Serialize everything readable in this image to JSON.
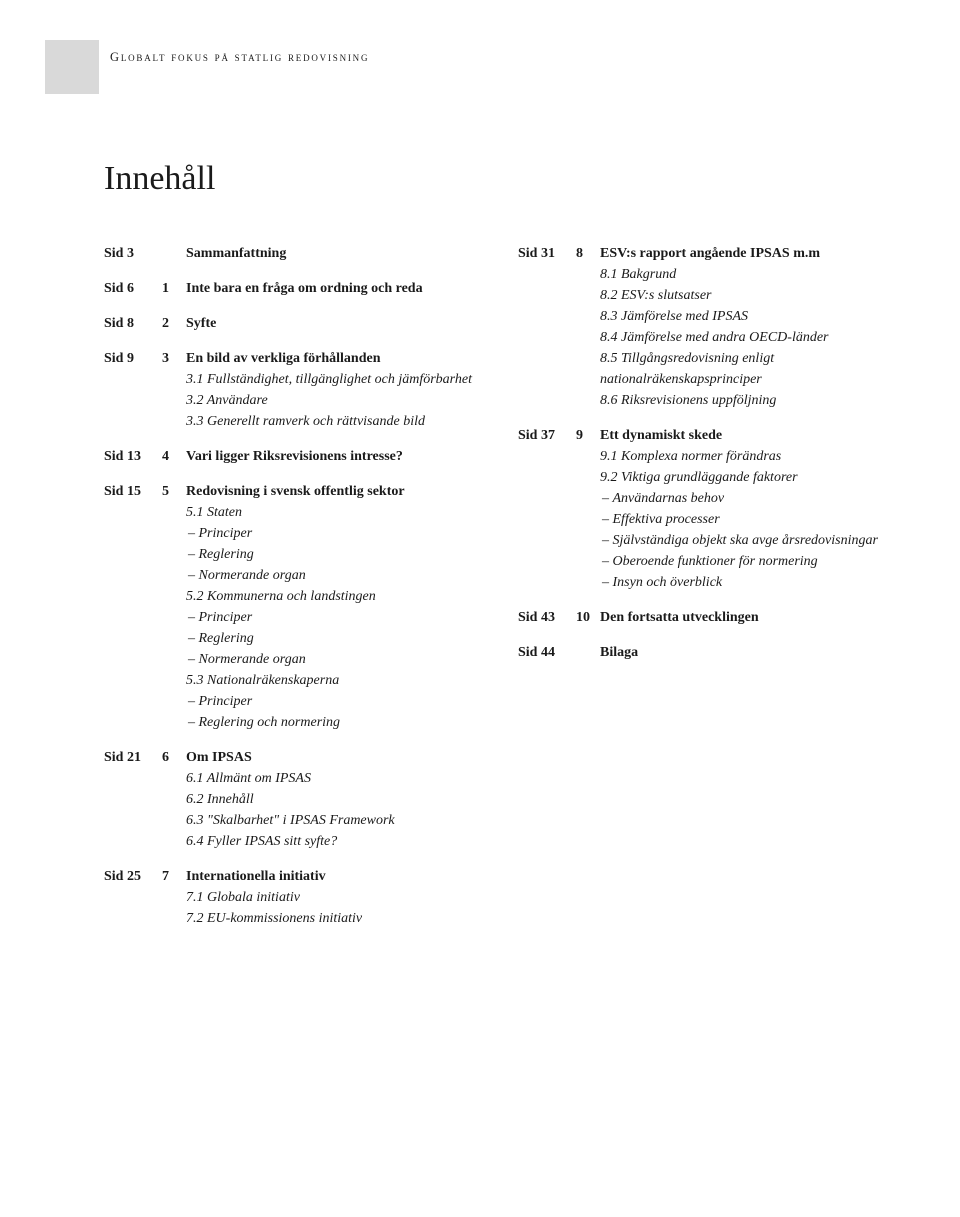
{
  "header": "GLOBALT FOKUS PÅ STATLIG REDOVISNING",
  "title": "Innehåll",
  "leftEntries": [
    {
      "sid": "Sid 3",
      "num": "",
      "head": "Sammanfattning",
      "subs": []
    },
    {
      "sid": "Sid 6",
      "num": "1",
      "head": "Inte bara en fråga om ordning och reda",
      "subs": []
    },
    {
      "sid": "Sid 8",
      "num": "2",
      "head": "Syfte",
      "subs": []
    },
    {
      "sid": "Sid 9",
      "num": "3",
      "head": "En bild av verkliga förhållanden",
      "subs": [
        {
          "t": "sub",
          "text": "3.1 Fullständighet, tillgänglighet och jämförbarhet"
        },
        {
          "t": "sub",
          "text": "3.2 Användare"
        },
        {
          "t": "sub",
          "text": "3.3 Generellt ramverk och rättvisande bild"
        }
      ]
    },
    {
      "sid": "Sid 13",
      "num": "4",
      "head": "Vari ligger Riksrevisionens intresse?",
      "subs": []
    },
    {
      "sid": "Sid 15",
      "num": "5",
      "head": "Redovisning i svensk offentlig sektor",
      "subs": [
        {
          "t": "sub",
          "text": "5.1 Staten"
        },
        {
          "t": "dash",
          "text": "Principer"
        },
        {
          "t": "dash",
          "text": "Reglering"
        },
        {
          "t": "dash",
          "text": "Normerande organ"
        },
        {
          "t": "sub",
          "text": "5.2 Kommunerna och landstingen"
        },
        {
          "t": "dash",
          "text": "Principer"
        },
        {
          "t": "dash",
          "text": "Reglering"
        },
        {
          "t": "dash",
          "text": "Normerande organ"
        },
        {
          "t": "sub",
          "text": "5.3 Nationalräkenskaperna"
        },
        {
          "t": "dash",
          "text": "Principer"
        },
        {
          "t": "dash",
          "text": "Reglering och normering"
        }
      ]
    },
    {
      "sid": "Sid 21",
      "num": "6",
      "head": "Om IPSAS",
      "subs": [
        {
          "t": "sub",
          "text": "6.1 Allmänt om IPSAS"
        },
        {
          "t": "sub",
          "text": "6.2 Innehåll"
        },
        {
          "t": "sub",
          "text": "6.3 \"Skalbarhet\" i IPSAS Framework"
        },
        {
          "t": "sub",
          "text": "6.4 Fyller IPSAS sitt syfte?"
        }
      ]
    },
    {
      "sid": "Sid 25",
      "num": "7",
      "head": "Internationella initiativ",
      "subs": [
        {
          "t": "sub",
          "text": "7.1 Globala initiativ"
        },
        {
          "t": "sub",
          "text": "7.2 EU-kommissionens initiativ"
        }
      ]
    }
  ],
  "rightEntries": [
    {
      "sid": "Sid 31",
      "num": "8",
      "head": "ESV:s rapport angående IPSAS m.m",
      "subs": [
        {
          "t": "sub",
          "text": "8.1 Bakgrund"
        },
        {
          "t": "sub",
          "text": "8.2 ESV:s slutsatser"
        },
        {
          "t": "sub",
          "text": "8.3 Jämförelse med IPSAS"
        },
        {
          "t": "sub",
          "text": "8.4 Jämförelse med andra OECD-länder"
        },
        {
          "t": "sub",
          "text": "8.5 Tillgångsredovisning enligt nationalräkenskapsprinciper"
        },
        {
          "t": "sub",
          "text": "8.6 Riksrevisionens uppföljning"
        }
      ]
    },
    {
      "sid": "Sid 37",
      "num": "9",
      "head": "Ett dynamiskt skede",
      "subs": [
        {
          "t": "sub",
          "text": "9.1 Komplexa normer förändras"
        },
        {
          "t": "sub",
          "text": "9.2 Viktiga grundläggande faktorer"
        },
        {
          "t": "dash",
          "text": "Användarnas behov"
        },
        {
          "t": "dash",
          "text": "Effektiva processer"
        },
        {
          "t": "dash",
          "text": "Självständiga objekt ska avge årsredovisningar"
        },
        {
          "t": "dash",
          "text": "Oberoende funktioner för normering"
        },
        {
          "t": "dash",
          "text": "Insyn och överblick"
        }
      ]
    },
    {
      "sid": "Sid 43",
      "num": "10",
      "head": "Den fortsatta utvecklingen",
      "subs": []
    },
    {
      "sid": "Sid 44",
      "num": "",
      "head": "Bilaga",
      "subs": []
    }
  ],
  "colors": {
    "background": "#ffffff",
    "text": "#1a1a1a",
    "headerBlock": "#d9d9d9"
  },
  "typography": {
    "titleSize": 34,
    "bodySize": 14,
    "headerSize": 12.5,
    "headerLetterSpacing": 1.8
  }
}
